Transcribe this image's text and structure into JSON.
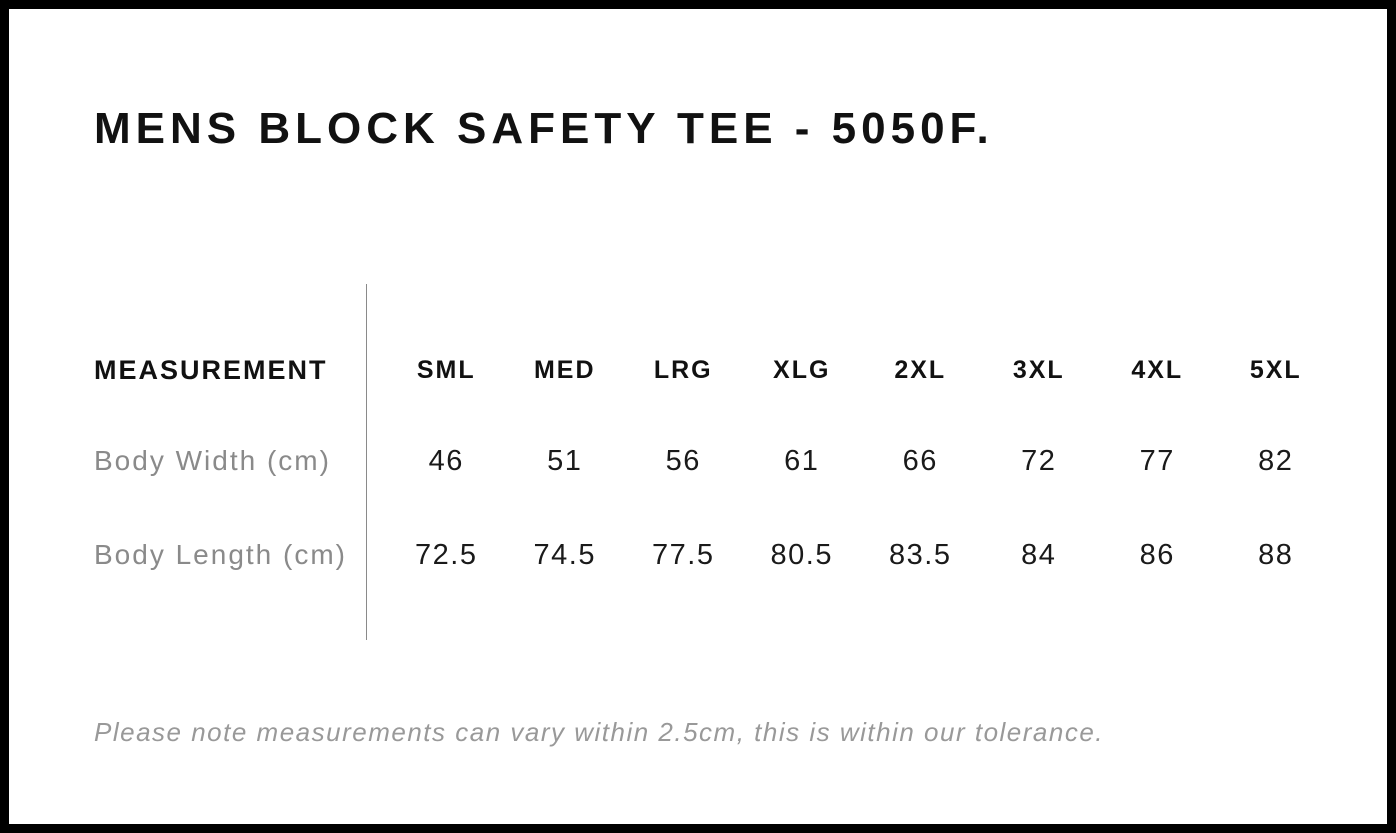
{
  "page": {
    "title": "MENS BLOCK SAFETY TEE - 5050F.",
    "note": "Please note measurements can vary within 2.5cm, this is within our tolerance."
  },
  "chart_data": {
    "type": "table",
    "title": "MENS BLOCK SAFETY TEE - 5050F.",
    "columns": [
      "MEASUREMENT",
      "SML",
      "MED",
      "LRG",
      "XLG",
      "2XL",
      "3XL",
      "4XL",
      "5XL"
    ],
    "rows": [
      {
        "label": "Body Width (cm)",
        "values": [
          "46",
          "51",
          "56",
          "61",
          "66",
          "72",
          "77",
          "82"
        ]
      },
      {
        "label": "Body Length (cm)",
        "values": [
          "72.5",
          "74.5",
          "77.5",
          "80.5",
          "83.5",
          "84",
          "86",
          "88"
        ]
      }
    ],
    "note": "Please note measurements can vary within 2.5cm, this is within our tolerance.",
    "layout": {
      "grid": "off",
      "column_divider_after": "MEASUREMENT"
    }
  },
  "colors": {
    "frame_border": "#000000",
    "background": "#ffffff",
    "title_text": "#111111",
    "header_text": "#111111",
    "value_text": "#1a1a1a",
    "row_label_text": "#8a8a8a",
    "note_text": "#999999",
    "divider_line": "#8a8a8a"
  }
}
